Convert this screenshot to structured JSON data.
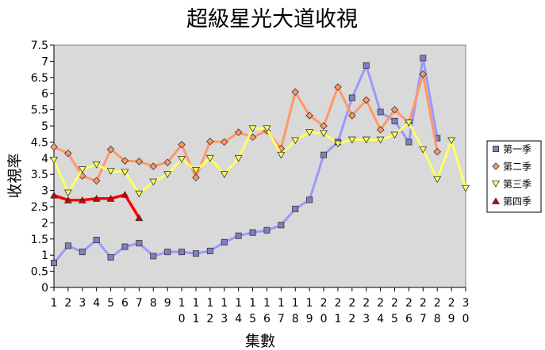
{
  "chart_data": {
    "type": "line",
    "title": "超級星光大道收視",
    "xlabel": "集數",
    "ylabel": "收視率",
    "ylim": [
      0,
      7.5
    ],
    "ystep": 0.5,
    "y_ticks": [
      "0",
      "0.5",
      "1",
      "1.5",
      "2",
      "2.5",
      "3",
      "3.5",
      "4",
      "4.5",
      "5",
      "5.5",
      "6",
      "6.5",
      "7",
      "7.5"
    ],
    "x": [
      1,
      2,
      3,
      4,
      5,
      6,
      7,
      8,
      9,
      10,
      11,
      12,
      13,
      14,
      15,
      16,
      17,
      18,
      19,
      20,
      21,
      22,
      23,
      24,
      25,
      26,
      27,
      28,
      29,
      30
    ],
    "x_tick_labels": [
      "1",
      "2",
      "3",
      "4",
      "5",
      "6",
      "7",
      "8",
      "9",
      "10",
      "11",
      "12",
      "13",
      "14",
      "15",
      "16",
      "17",
      "18",
      "19",
      "20",
      "21",
      "22",
      "23",
      "24",
      "25",
      "26",
      "27",
      "28",
      "29",
      "30"
    ],
    "grid": false,
    "legend_position": "right",
    "series": [
      {
        "name": "第一季",
        "marker": "square",
        "line_color": "#9999ff",
        "marker_color": "#8080c0",
        "values": [
          0.76,
          1.29,
          1.1,
          1.47,
          0.93,
          1.26,
          1.37,
          0.97,
          1.1,
          1.1,
          1.05,
          1.13,
          1.4,
          1.6,
          1.7,
          1.77,
          1.93,
          2.43,
          2.71,
          4.1,
          4.5,
          5.87,
          6.87,
          5.43,
          5.15,
          4.5,
          7.1,
          4.62,
          null,
          null
        ]
      },
      {
        "name": "第二季",
        "marker": "diamond",
        "line_color": "#ff9966",
        "marker_color": "#ff9966",
        "values": [
          4.35,
          4.15,
          3.45,
          3.3,
          4.27,
          3.92,
          3.9,
          3.75,
          3.87,
          4.42,
          3.4,
          4.52,
          4.5,
          4.8,
          4.65,
          4.85,
          4.3,
          6.05,
          5.32,
          5.0,
          6.2,
          5.32,
          5.8,
          4.88,
          5.5,
          5.1,
          6.6,
          4.2,
          null,
          null
        ]
      },
      {
        "name": "第三季",
        "marker": "triangle-down",
        "line_color": "#ffff66",
        "marker_color": "#ffff66",
        "values": [
          3.95,
          2.93,
          3.65,
          3.8,
          3.6,
          3.57,
          2.9,
          3.27,
          3.5,
          3.97,
          3.63,
          4.0,
          3.5,
          4.0,
          4.92,
          4.92,
          4.1,
          4.55,
          4.8,
          4.77,
          4.45,
          4.57,
          4.57,
          4.57,
          4.72,
          5.1,
          4.27,
          3.35,
          4.55,
          3.07
        ]
      },
      {
        "name": "第四季",
        "marker": "triangle-up",
        "line_color": "#ff0000",
        "marker_color": "#cc0000",
        "values": [
          2.85,
          2.7,
          2.7,
          2.75,
          2.75,
          2.87,
          2.15,
          null,
          null,
          null,
          null,
          null,
          null,
          null,
          null,
          null,
          null,
          null,
          null,
          null,
          null,
          null,
          null,
          null,
          null,
          null,
          null,
          null,
          null,
          null
        ]
      }
    ]
  }
}
